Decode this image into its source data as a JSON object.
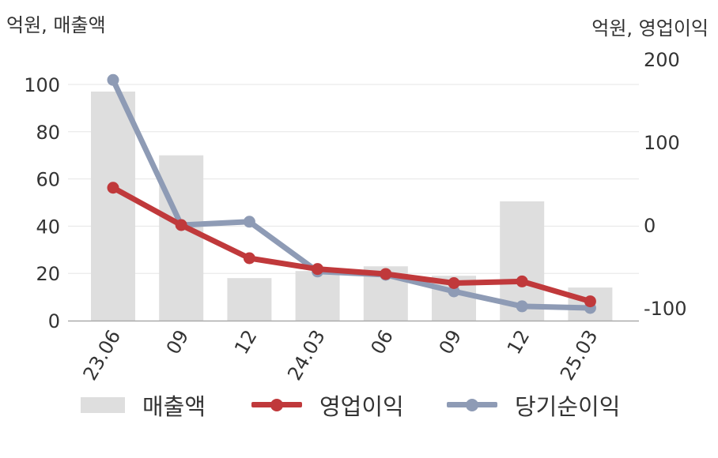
{
  "axis_units": {
    "left": "억원, 매출액",
    "right": "억원, 영업이익"
  },
  "colors": {
    "revenue": "#dedede",
    "operating_profit": "#c0393b",
    "net_income": "#8e9bb5",
    "axis": "#aaaaaa",
    "grid": "#e6e6e6",
    "text": "#333333"
  },
  "legend": [
    {
      "label": "매출액",
      "type": "bar",
      "color": "#dedede"
    },
    {
      "label": "영업이익",
      "type": "line",
      "color": "#c0393b"
    },
    {
      "label": "당기순이익",
      "type": "line",
      "color": "#8e9bb5"
    }
  ],
  "chart_data": {
    "type": "bar",
    "categories": [
      "23.06",
      "09",
      "12",
      "24.03",
      "06",
      "09",
      "12",
      "25.03"
    ],
    "series": [
      {
        "name": "매출액",
        "type": "bar",
        "axis": "left",
        "values": [
          97,
          70,
          18,
          21,
          23,
          19,
          50.5,
          14
        ]
      },
      {
        "name": "영업이익",
        "type": "line",
        "axis": "right",
        "values": [
          45,
          0,
          -40,
          -53,
          -59,
          -70,
          -68,
          -92
        ]
      },
      {
        "name": "당기순이익",
        "type": "line",
        "axis": "right",
        "values": [
          175,
          0,
          4,
          -56,
          -60,
          -80,
          -98,
          -100
        ]
      }
    ],
    "left_axis": {
      "ylim": [
        0,
        100
      ],
      "ticks": [
        0,
        20,
        40,
        60,
        80,
        100
      ]
    },
    "right_axis": {
      "ylim": [
        -100,
        200
      ],
      "ticks": [
        -100,
        0,
        100,
        200
      ]
    },
    "grid": true,
    "legend_position": "bottom"
  }
}
